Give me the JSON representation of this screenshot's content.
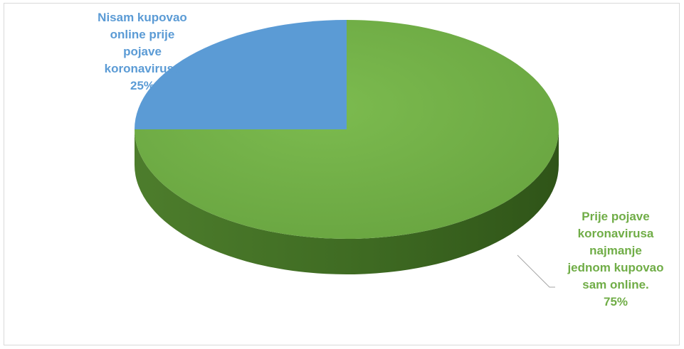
{
  "chart_data": {
    "type": "pie",
    "style": "3d",
    "title": "",
    "slices": [
      {
        "label": "Nisam kupovao\nonline prije\npojave\nkoronavirusa\n25%",
        "value": 25,
        "color": "#5b9bd5"
      },
      {
        "label": "Prije pojave\nkoronavirusa\nnajmanje\njednom kupovao\nsam online.\n75%",
        "value": 75,
        "color": "#70ad47"
      }
    ]
  }
}
